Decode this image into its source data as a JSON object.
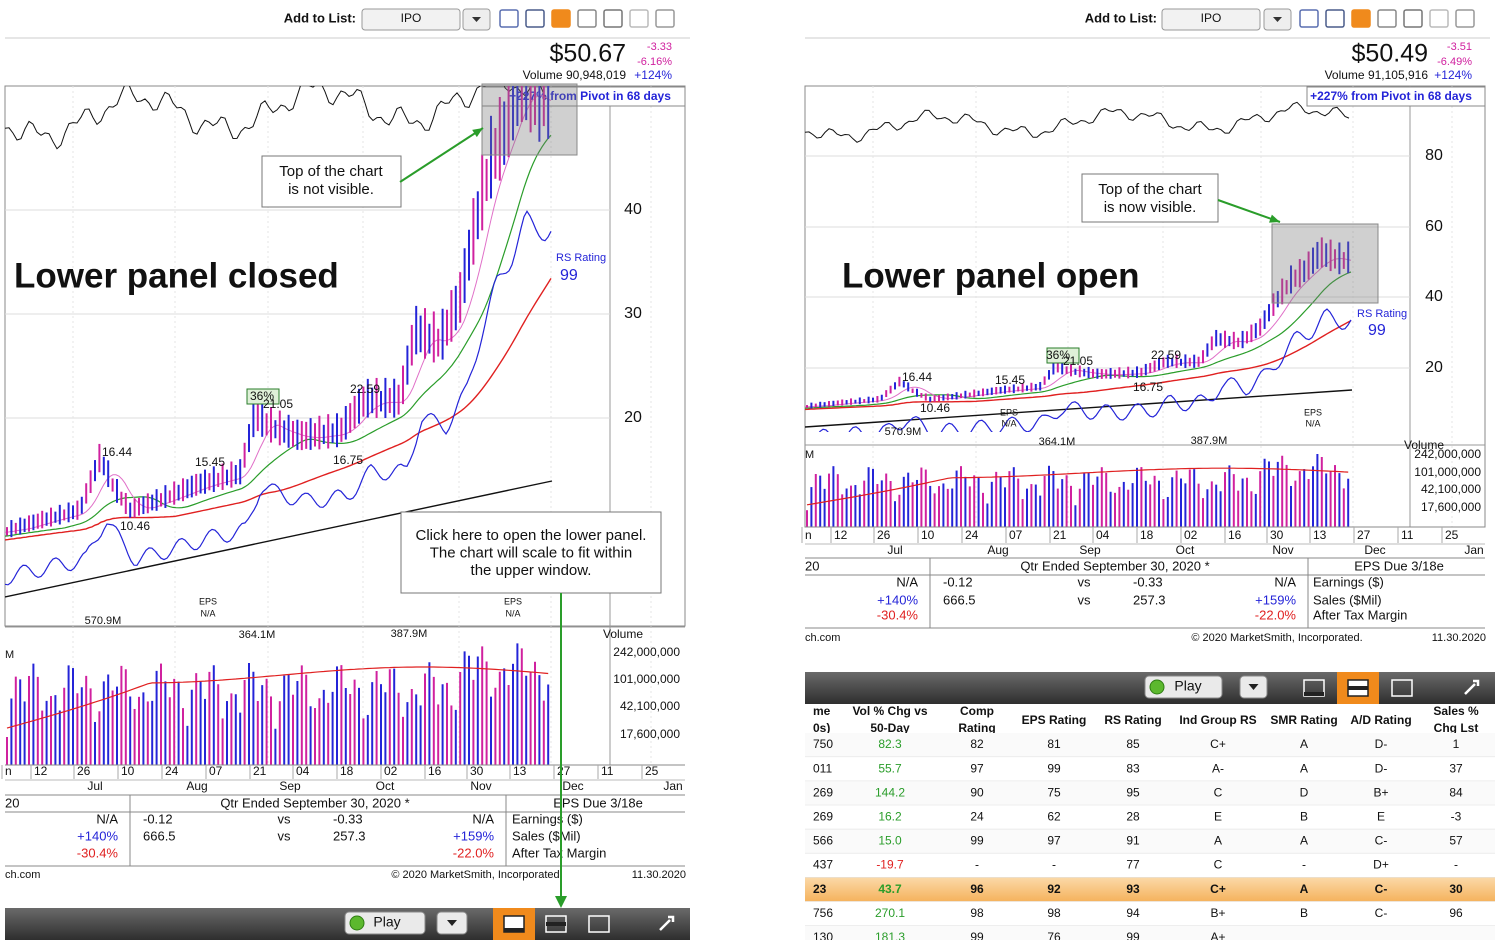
{
  "left": {
    "add_to_list": "Add to List:",
    "list": "IPO",
    "price": "$50.67",
    "change": "-3.33",
    "change_pct": "-6.16%",
    "volume": "Volume 90,948,019",
    "volume_change": "+124%",
    "pivot": "+227% from Pivot in 68 days",
    "price_axis": [
      "40",
      "30",
      "20"
    ],
    "callout": [
      "Top of the chart",
      "is not visible."
    ],
    "headline": "Lower panel closed",
    "rs_label": "RS Rating",
    "rs_value": "99",
    "price_labels": [
      "16.44",
      "15.45",
      "36%",
      "21.05",
      "22.59",
      "16.75",
      "10.46"
    ],
    "eps_labels": [
      [
        "EPS",
        "N/A"
      ],
      [
        "EPS",
        "N/A"
      ]
    ],
    "volume_labels": [
      "570.9M",
      "364.1M",
      "387.9M"
    ],
    "volume_title": "Volume",
    "volume_axis": [
      "242,000,000",
      "101,000,000",
      "42,100,000",
      "17,600,000"
    ],
    "volume_edge": "M",
    "days": [
      "n",
      "12",
      "26",
      "10",
      "24",
      "07",
      "21",
      "04",
      "18",
      "02",
      "16",
      "30",
      "13",
      "27",
      "11",
      "25"
    ],
    "months": [
      "Jul",
      "Aug",
      "Sep",
      "Oct",
      "Nov",
      "Dec",
      "Jan"
    ],
    "quarter": {
      "left": "20",
      "title": "Qtr Ended September 30, 2020 *",
      "due": "EPS Due 3/18e",
      "rows": [
        [
          "N/A",
          "-0.12",
          "vs",
          "-0.33",
          "N/A",
          "Earnings ($)"
        ],
        [
          "+140%",
          "666.5",
          "vs",
          "257.3",
          "+159%",
          "Sales ($Mil)"
        ],
        [
          "-30.4%",
          "-22.0%",
          "After Tax Margin"
        ]
      ]
    },
    "footer": {
      "site": "ch.com",
      "copyright": "© 2020 MarketSmith, Incorporated.",
      "date": "11.30.2020"
    },
    "play": "Play",
    "note": [
      "Click here to open the lower panel.",
      "The chart will scale to fit within",
      "the upper window."
    ]
  },
  "right": {
    "add_to_list": "Add to List:",
    "list": "IPO",
    "price": "$50.49",
    "change": "-3.51",
    "change_pct": "-6.49%",
    "volume": "Volume 91,105,916",
    "volume_change": "+124%",
    "pivot": "+227% from Pivot in 68 days",
    "price_axis": [
      "80",
      "60",
      "40",
      "20"
    ],
    "callout": [
      "Top of the chart",
      "is now visible."
    ],
    "headline": "Lower panel open",
    "rs_label": "RS Rating",
    "rs_value": "99",
    "price_labels": [
      "16.44",
      "15.45",
      "36%",
      "21.05",
      "22.59",
      "16.75",
      "10.46"
    ],
    "eps_labels": [
      [
        "EPS",
        "N/A"
      ],
      [
        "EPS",
        "N/A"
      ]
    ],
    "volume_labels": [
      "570.9M",
      "364.1M",
      "387.9M"
    ],
    "volume_title": "Volume",
    "volume_axis": [
      "242,000,000",
      "101,000,000",
      "42,100,000",
      "17,600,000"
    ],
    "volume_edge": "M",
    "days": [
      "n",
      "12",
      "26",
      "10",
      "24",
      "07",
      "21",
      "04",
      "18",
      "02",
      "16",
      "30",
      "13",
      "27",
      "11",
      "25"
    ],
    "months": [
      "Jul",
      "Aug",
      "Sep",
      "Oct",
      "Nov",
      "Dec",
      "Jan"
    ],
    "quarter": {
      "left": "20",
      "title": "Qtr Ended September 30, 2020 *",
      "due": "EPS Due 3/18e",
      "rows": [
        [
          "N/A",
          "-0.12",
          "vs",
          "-0.33",
          "N/A",
          "Earnings ($)"
        ],
        [
          "+140%",
          "666.5",
          "vs",
          "257.3",
          "+159%",
          "Sales ($Mil)"
        ],
        [
          "-30.4%",
          "-22.0%",
          "After Tax Margin"
        ]
      ]
    },
    "footer": {
      "site": "ch.com",
      "copyright": "© 2020 MarketSmith, Incorporated.",
      "date": "11.30.2020"
    },
    "play": "Play",
    "table": {
      "headers": [
        [
          "me",
          "0s)"
        ],
        [
          "Vol % Chg vs",
          "50-Day"
        ],
        [
          "Comp",
          "Rating"
        ],
        [
          "EPS Rating"
        ],
        [
          "RS Rating"
        ],
        [
          "Ind Group RS"
        ],
        [
          "SMR Rating"
        ],
        [
          "A/D Rating"
        ],
        [
          "Sales %",
          "Chg Lst"
        ]
      ],
      "rows": [
        [
          "750",
          "82.3",
          "82",
          "81",
          "85",
          "C+",
          "A",
          "D-",
          "1"
        ],
        [
          "011",
          "55.7",
          "97",
          "99",
          "83",
          "A-",
          "A",
          "D-",
          "37"
        ],
        [
          "269",
          "144.2",
          "90",
          "75",
          "95",
          "C",
          "D",
          "B+",
          "84"
        ],
        [
          "269",
          "16.2",
          "24",
          "62",
          "28",
          "E",
          "B",
          "E",
          "-3"
        ],
        [
          "566",
          "15.0",
          "99",
          "97",
          "91",
          "A",
          "A",
          "C-",
          "57"
        ],
        [
          "437",
          "-19.7",
          "-",
          "-",
          "77",
          "C",
          "-",
          "D+",
          "-"
        ],
        [
          "23",
          "43.7",
          "96",
          "92",
          "93",
          "C+",
          "A",
          "C-",
          "30"
        ],
        [
          "756",
          "270.1",
          "98",
          "98",
          "94",
          "B+",
          "B",
          "C-",
          "96"
        ],
        [
          "130",
          "181.3",
          "99",
          "76",
          "99",
          "A+"
        ]
      ],
      "highlight_row": 6
    }
  }
}
